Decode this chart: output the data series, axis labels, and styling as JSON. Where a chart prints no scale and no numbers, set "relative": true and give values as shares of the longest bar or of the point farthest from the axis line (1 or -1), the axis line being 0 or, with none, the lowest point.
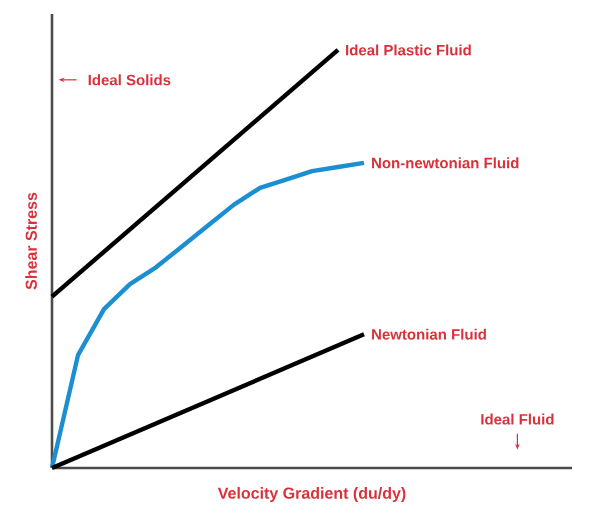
{
  "chart_data": {
    "type": "line",
    "relative": true,
    "xlabel": "Velocity Gradient (du/dy)",
    "ylabel": "Shear Stress",
    "tick_labels": false,
    "marker": "none",
    "line_style": "solid",
    "categories": [
      null,
      null,
      null,
      null,
      null,
      null,
      null,
      null,
      null,
      null,
      null,
      null,
      null,
      null,
      null,
      null,
      null,
      null,
      null,
      null,
      null
    ],
    "annotations": [
      "Ideal Solids",
      "Ideal Fluid"
    ],
    "series": [
      {
        "name": "Ideal Plastic Fluid",
        "color": "#000000",
        "values": [
          0.41,
          null,
          null,
          null,
          null,
          null,
          null,
          null,
          null,
          null,
          null,
          1,
          null,
          null,
          null,
          null,
          null,
          null,
          null,
          null,
          null
        ]
      },
      {
        "name": "Non-newtonian Fluid",
        "color": "#1b8fd2",
        "values": [
          0,
          0.27,
          0.38,
          0.44,
          0.48,
          0.53,
          0.58,
          0.63,
          0.67,
          0.69,
          0.71,
          0.72,
          0.73,
          null,
          null,
          null,
          null,
          null,
          null,
          null,
          null
        ]
      },
      {
        "name": "Newtonian Fluid",
        "color": "#000000",
        "values": [
          0,
          null,
          null,
          null,
          null,
          null,
          null,
          null,
          null,
          null,
          null,
          null,
          0.32,
          null,
          null,
          null,
          null,
          null,
          null,
          null,
          null
        ]
      }
    ]
  }
}
